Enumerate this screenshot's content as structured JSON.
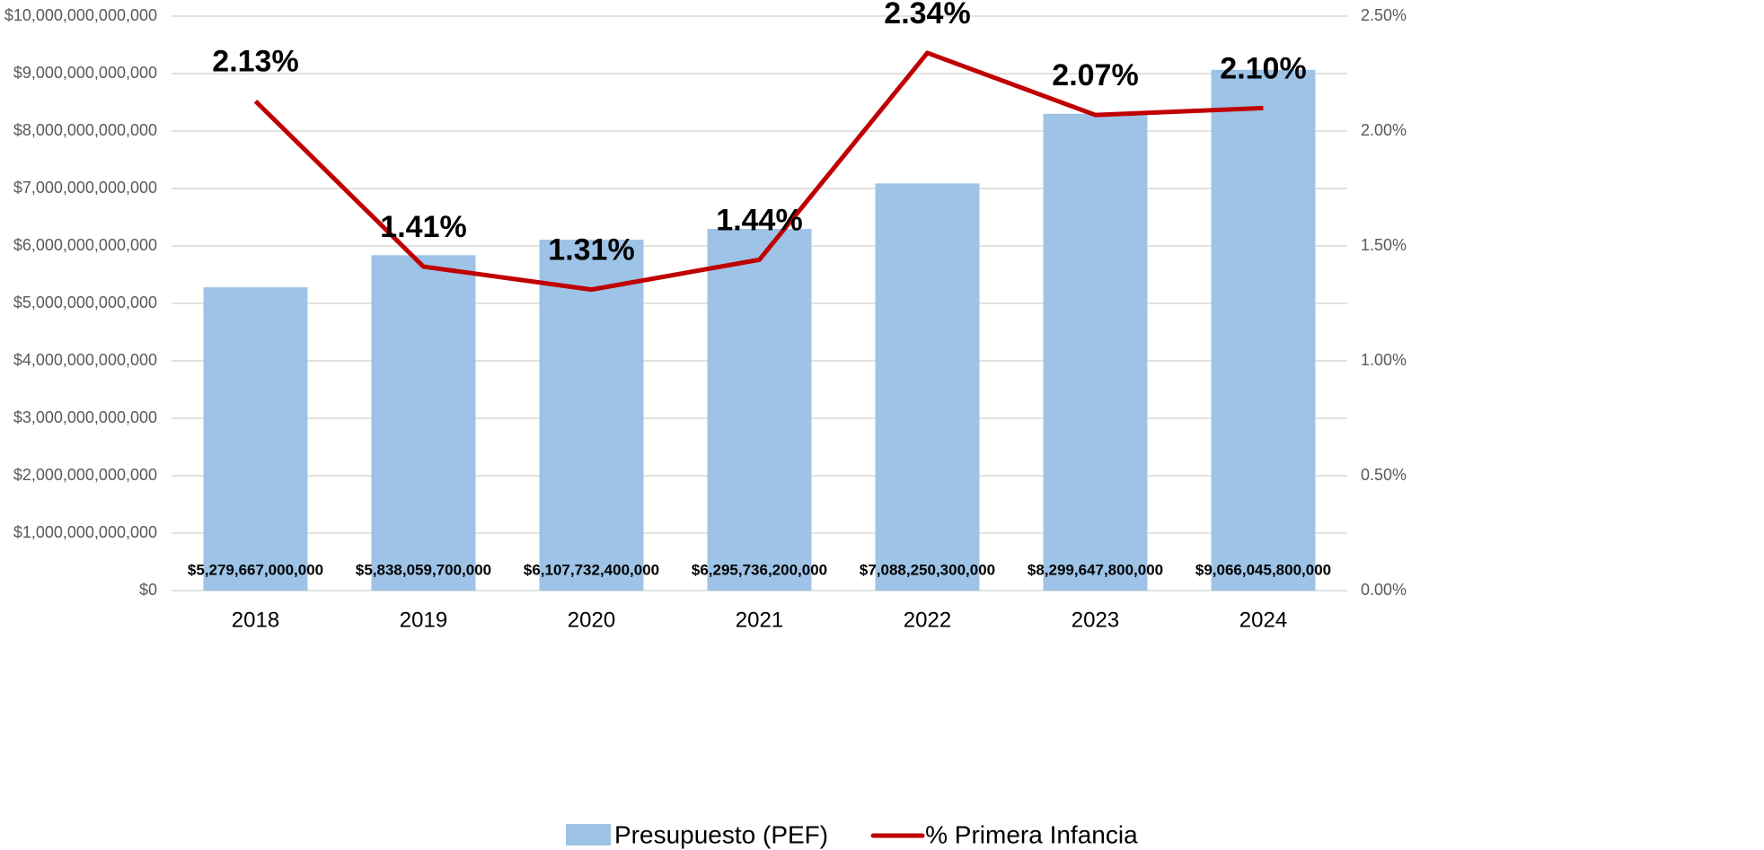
{
  "chart_data": {
    "type": "bar",
    "categories": [
      "2018",
      "2019",
      "2020",
      "2021",
      "2022",
      "2023",
      "2024"
    ],
    "series": [
      {
        "name": "Presupuesto (PEF)",
        "type": "bar",
        "color": "#9dc3e6",
        "values": [
          5279667000000,
          5838059700000,
          6107732400000,
          6295736200000,
          7088250300000,
          8299647800000,
          9066045800000
        ],
        "value_labels": [
          "$5,279,667,000,000",
          "$5,838,059,700,000",
          "$6,107,732,400,000",
          "$6,295,736,200,000",
          "$7,088,250,300,000",
          "$8,299,647,800,000",
          "$9,066,045,800,000"
        ]
      },
      {
        "name": "% Primera Infancia",
        "type": "line",
        "axis": "y2",
        "color": "#c00000",
        "values": [
          2.13,
          1.41,
          1.31,
          1.44,
          2.34,
          2.07,
          2.1
        ],
        "value_labels": [
          "2.13%",
          "1.41%",
          "1.31%",
          "1.44%",
          "2.34%",
          "2.07%",
          "2.10%"
        ]
      }
    ],
    "ylim": [
      0,
      10000000000000
    ],
    "yticks": [
      {
        "value": 0,
        "label": "$0"
      },
      {
        "value": 1000000000000,
        "label": "$1,000,000,000,000"
      },
      {
        "value": 2000000000000,
        "label": "$2,000,000,000,000"
      },
      {
        "value": 3000000000000,
        "label": "$3,000,000,000,000"
      },
      {
        "value": 4000000000000,
        "label": "$4,000,000,000,000"
      },
      {
        "value": 5000000000000,
        "label": "$5,000,000,000,000"
      },
      {
        "value": 6000000000000,
        "label": "$6,000,000,000,000"
      },
      {
        "value": 7000000000000,
        "label": "$7,000,000,000,000"
      },
      {
        "value": 8000000000000,
        "label": "$8,000,000,000,000"
      },
      {
        "value": 9000000000000,
        "label": "$9,000,000,000,000"
      },
      {
        "value": 10000000000000,
        "label": "$10,000,000,000,000"
      }
    ],
    "y2lim": [
      0,
      2.5
    ],
    "y2ticks": [
      {
        "value": 0,
        "label": "0.00%"
      },
      {
        "value": 0.5,
        "label": "0.50%"
      },
      {
        "value": 1,
        "label": "1.00%"
      },
      {
        "value": 1.5,
        "label": "1.50%"
      },
      {
        "value": 2,
        "label": "2.00%"
      },
      {
        "value": 2.5,
        "label": "2.50%"
      }
    ],
    "grid": true,
    "legend": "bottom"
  }
}
